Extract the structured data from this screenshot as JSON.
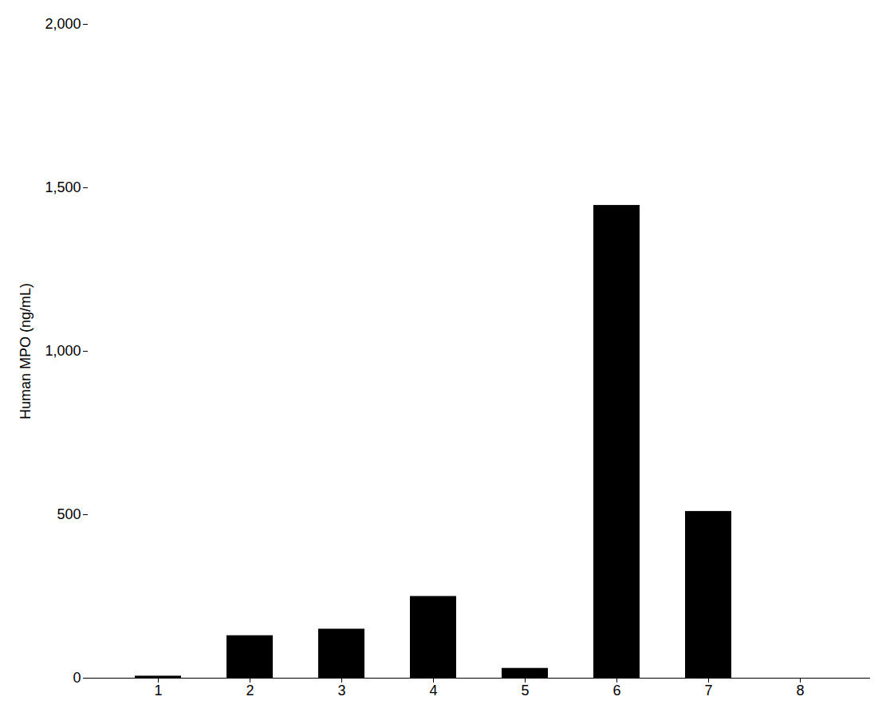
{
  "chart_data": {
    "type": "bar",
    "ylabel": "Human MPO (ng/mL)",
    "categories": [
      "1",
      "2",
      "3",
      "4",
      "5",
      "6",
      "7",
      "8"
    ],
    "values": [
      6.3,
      130.0,
      150.0,
      250.0,
      30.0,
      1446.1,
      510.0,
      0.0
    ],
    "color": "#000000",
    "ylim": [
      0,
      2000
    ],
    "yticks": [
      0,
      500,
      {
        "value": 1000,
        "label": "1,000"
      },
      {
        "value": 1500,
        "label": "1,500"
      },
      {
        "value": 2000,
        "label": "2,000"
      }
    ],
    "grid": false
  }
}
